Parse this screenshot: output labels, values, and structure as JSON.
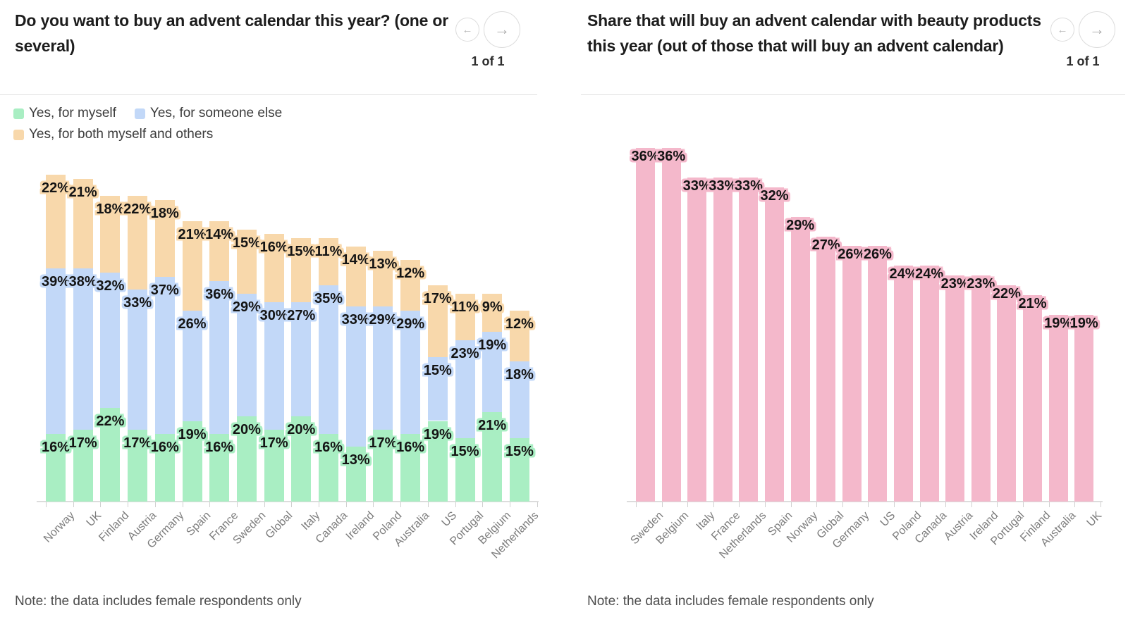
{
  "icons": {
    "prev": "←",
    "next": "→"
  },
  "panels": [
    {
      "title": "Do you want to buy an advent calendar this year? (one or several)",
      "pager": "1 of 1",
      "note": "Note: the data includes female respondents only",
      "legend": [
        {
          "label": "Yes, for myself",
          "color": "#a9eec3"
        },
        {
          "label": "Yes, for someone else",
          "color": "#c2d8f8"
        },
        {
          "label": "Yes, for both myself and others",
          "color": "#f8d8ab"
        }
      ]
    },
    {
      "title": "Share that will buy an advent calendar with beauty products this year (out of those that will buy an advent calendar)",
      "pager": "1 of 1",
      "note": "Note: the data includes female respondents only"
    }
  ],
  "chart_data": [
    {
      "type": "bar",
      "stacked": true,
      "title": "Do you want to buy an advent calendar this year? (one or several)",
      "categories": [
        "Norway",
        "UK",
        "Finland",
        "Austria",
        "Germany",
        "Spain",
        "France",
        "Sweden",
        "Global",
        "Italy",
        "Canada",
        "Ireland",
        "Poland",
        "Australia",
        "US",
        "Portugal",
        "Belgium",
        "Netherlands"
      ],
      "series": [
        {
          "name": "Yes, for myself",
          "color": "#a9eec3",
          "values": [
            16,
            17,
            22,
            17,
            16,
            19,
            16,
            20,
            17,
            20,
            16,
            13,
            17,
            16,
            19,
            15,
            21,
            15
          ]
        },
        {
          "name": "Yes, for someone else",
          "color": "#c2d8f8",
          "values": [
            39,
            38,
            32,
            33,
            37,
            26,
            36,
            29,
            30,
            27,
            35,
            33,
            29,
            29,
            15,
            23,
            19,
            18
          ]
        },
        {
          "name": "Yes, for both myself and others",
          "color": "#f8d8ab",
          "values": [
            22,
            21,
            18,
            22,
            18,
            21,
            14,
            15,
            16,
            15,
            11,
            14,
            13,
            12,
            17,
            11,
            9,
            12
          ]
        }
      ],
      "value_suffix": "%",
      "x_labels_rotated": true,
      "grid": false,
      "legend_position": "top"
    },
    {
      "type": "bar",
      "stacked": false,
      "title": "Share that will buy an advent calendar with beauty products this year (out of those that will buy an advent calendar)",
      "categories": [
        "Sweden",
        "Belgium",
        "Italy",
        "France",
        "Netherlands",
        "Spain",
        "Norway",
        "Global",
        "Germany",
        "US",
        "Poland",
        "Canada",
        "Austria",
        "Ireland",
        "Portugal",
        "Finland",
        "Australia",
        "UK"
      ],
      "series": [
        {
          "color": "#f4b8cb",
          "values": [
            36,
            36,
            33,
            33,
            33,
            32,
            29,
            27,
            26,
            26,
            24,
            24,
            23,
            23,
            22,
            21,
            19,
            19
          ]
        }
      ],
      "value_suffix": "%",
      "x_labels_rotated": true,
      "grid": false
    }
  ]
}
